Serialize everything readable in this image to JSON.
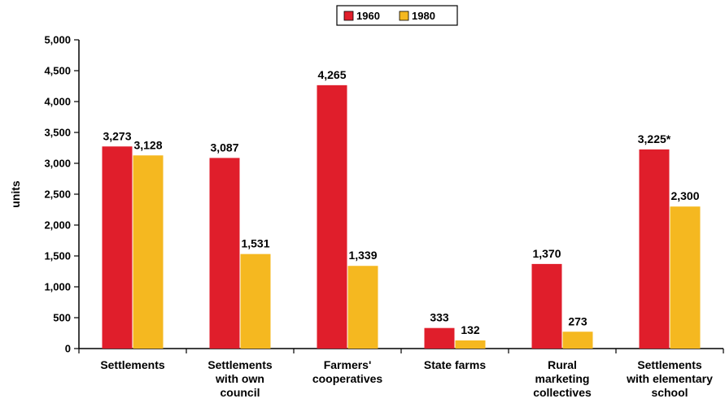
{
  "chart_data": {
    "type": "bar",
    "title": "",
    "xlabel": "",
    "ylabel": "units",
    "ylim": [
      0,
      5000
    ],
    "ytick_step": 500,
    "ytick_labels": [
      "0",
      "500",
      "1,000",
      "1,500",
      "2,000",
      "2,500",
      "3,000",
      "3,500",
      "4,000",
      "4,500",
      "5,000"
    ],
    "grid": false,
    "legend_position": "top-center",
    "categories": [
      [
        "Settlements"
      ],
      [
        "Settlements",
        "with own",
        "council"
      ],
      [
        "Farmers'",
        "cooperatives"
      ],
      [
        "State farms"
      ],
      [
        "Rural",
        "marketing",
        "collectives"
      ],
      [
        "Settlements",
        "with elementary",
        "school"
      ]
    ],
    "series": [
      {
        "name": "1960",
        "color": "#e01e2b",
        "values": [
          3273,
          3087,
          4265,
          333,
          1370,
          3225
        ],
        "labels": [
          "3,273",
          "3,087",
          "4,265",
          "333",
          "1,370",
          "3,225*"
        ]
      },
      {
        "name": "1980",
        "color": "#f5b820",
        "values": [
          3128,
          1531,
          1339,
          132,
          273,
          2300
        ],
        "labels": [
          "3,128",
          "1,531",
          "1,339",
          "132",
          "273",
          "2,300"
        ]
      }
    ]
  }
}
